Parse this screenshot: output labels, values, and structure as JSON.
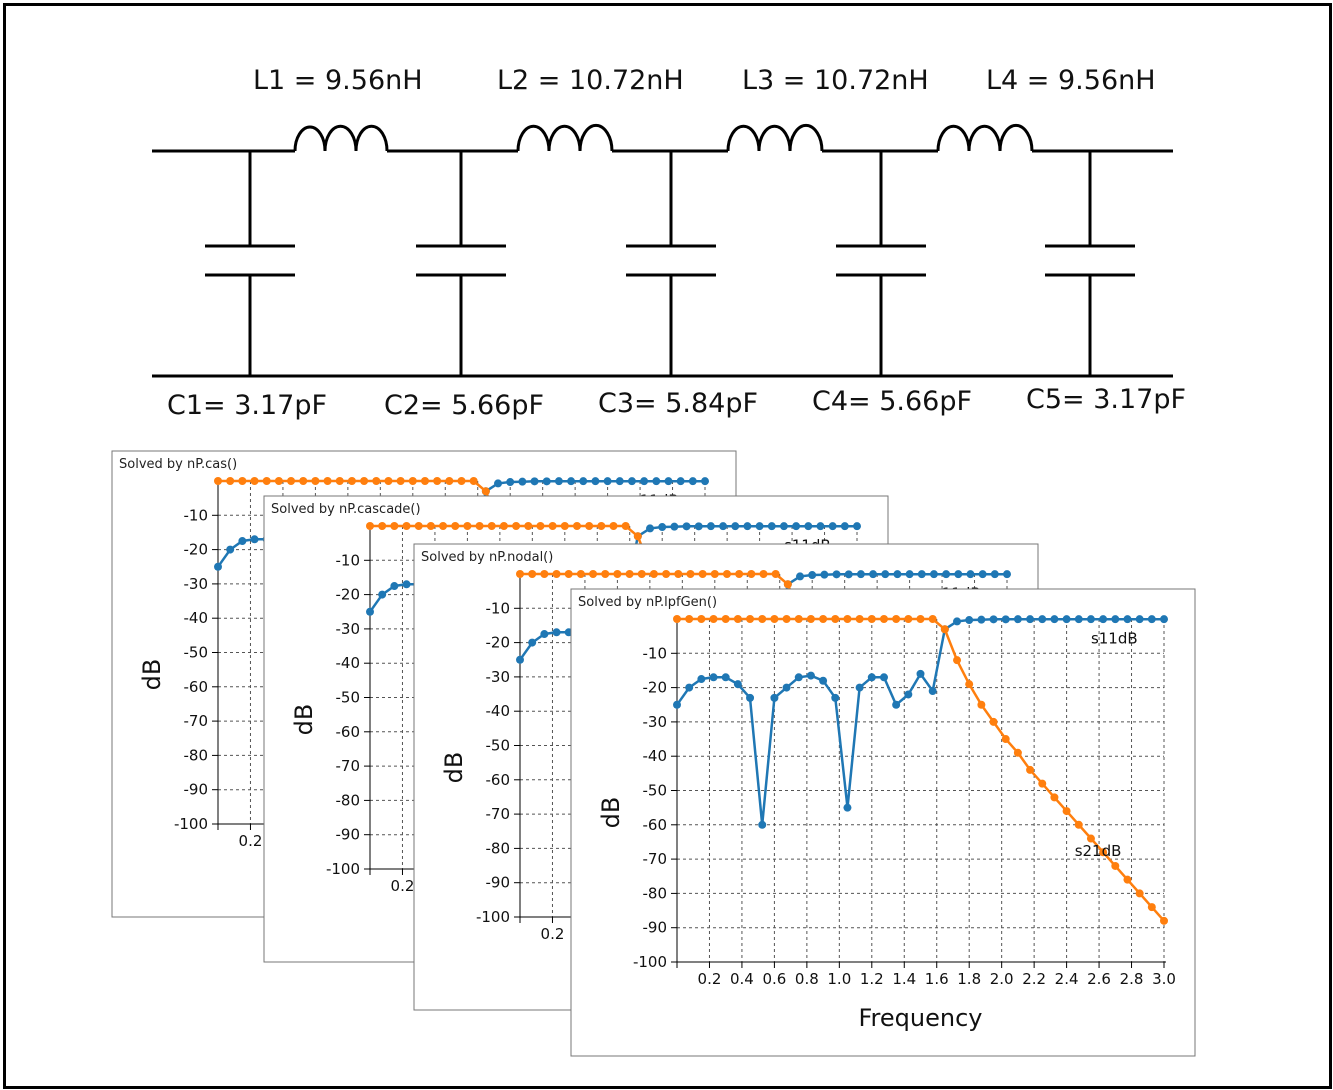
{
  "circuit": {
    "inductors": [
      {
        "label": "L1 = 9.56nH"
      },
      {
        "label": "L2 = 10.72nH"
      },
      {
        "label": "L3 = 10.72nH"
      },
      {
        "label": "L4 = 9.56nH"
      }
    ],
    "capacitors": [
      {
        "label": "C1= 3.17pF"
      },
      {
        "label": "C2= 5.66pF"
      },
      {
        "label": "C3= 5.84pF"
      },
      {
        "label": "C4= 5.66pF"
      },
      {
        "label": "C5= 3.17pF"
      }
    ]
  },
  "chart_data": [
    {
      "type": "line",
      "panel_title": "Solved by nP.cas()",
      "ylabel": "dB",
      "partial": true
    },
    {
      "type": "line",
      "panel_title": "Solved by nP.cascade()",
      "ylabel": "dB",
      "partial": true
    },
    {
      "type": "line",
      "panel_title": "Solved by nP.nodal()",
      "ylabel": "dB",
      "partial": true
    },
    {
      "type": "line",
      "panel_title": "Solved by nP.lpfGen()",
      "xlabel": "Frequency",
      "ylabel": "dB",
      "xlim": [
        0,
        3.0
      ],
      "ylim": [
        -100,
        0
      ],
      "xticks": [
        0.2,
        0.4,
        0.6,
        0.8,
        1.0,
        1.2,
        1.4,
        1.6,
        1.8,
        2.0,
        2.2,
        2.4,
        2.6,
        2.8,
        3.0
      ],
      "yticks": [
        -10,
        -20,
        -30,
        -40,
        -50,
        -60,
        -70,
        -80,
        -90,
        -100
      ],
      "grid": true,
      "x": [
        0.0,
        0.075,
        0.15,
        0.225,
        0.3,
        0.375,
        0.45,
        0.525,
        0.6,
        0.675,
        0.75,
        0.825,
        0.9,
        0.975,
        1.05,
        1.125,
        1.2,
        1.275,
        1.35,
        1.425,
        1.5,
        1.575,
        1.65,
        1.725,
        1.8,
        1.875,
        1.95,
        2.025,
        2.1,
        2.175,
        2.25,
        2.325,
        2.4,
        2.475,
        2.55,
        2.625,
        2.7,
        2.775,
        2.85,
        2.925,
        3.0
      ],
      "series": [
        {
          "name": "s11dB",
          "color": "#1f77b4",
          "values": [
            -25,
            -20,
            -17.5,
            -17,
            -17,
            -19,
            -23,
            -60,
            -23,
            -20,
            -17,
            -16.5,
            -18,
            -23,
            -55,
            -20,
            -17,
            -17,
            -25,
            -22,
            -16,
            -21,
            -3,
            -0.7,
            -0.3,
            -0.2,
            -0.1,
            -0.1,
            -0.05,
            -0.05,
            -0.05,
            -0.05,
            -0.05,
            -0.05,
            -0.05,
            -0.05,
            -0.05,
            -0.05,
            -0.05,
            -0.05,
            -0.05
          ]
        },
        {
          "name": "s21dB",
          "color": "#ff7f0e",
          "values": [
            0,
            0,
            0,
            0,
            0,
            0,
            0,
            0,
            0,
            0,
            0,
            0,
            0,
            0,
            0,
            0,
            0,
            0,
            0,
            0,
            0,
            0,
            -3,
            -12,
            -19,
            -25,
            -30,
            -35,
            -39,
            -44,
            -48,
            -52,
            -56,
            -60,
            -64,
            -68,
            -72,
            -76,
            -80,
            -84,
            -88
          ]
        }
      ],
      "series_labels": [
        "s11dB",
        "s21dB"
      ]
    }
  ]
}
